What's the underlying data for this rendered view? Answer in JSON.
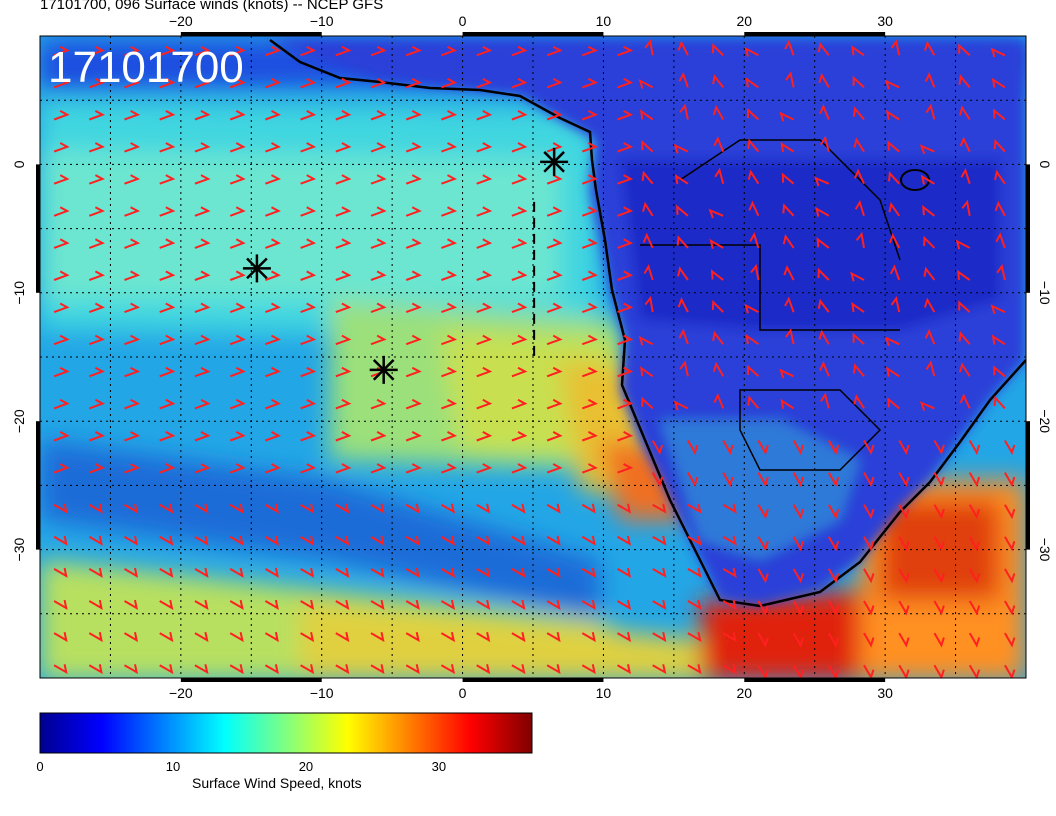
{
  "title": "17101700, 096 Surface winds (knots) -- NCEP GFS",
  "stamp": "17101700",
  "map": {
    "projection": "lat-lon",
    "lon_range": [
      -30,
      40
    ],
    "lat_range": [
      -40,
      10
    ],
    "grid": true,
    "lon_ticks": [
      {
        "value": -20,
        "label": "−20"
      },
      {
        "value": -10,
        "label": "−10"
      },
      {
        "value": 0,
        "label": "0"
      },
      {
        "value": 10,
        "label": "10"
      },
      {
        "value": 20,
        "label": "20"
      },
      {
        "value": 30,
        "label": "30"
      }
    ],
    "lat_ticks": [
      {
        "value": 0,
        "label": "0"
      },
      {
        "value": -10,
        "label": "−10"
      },
      {
        "value": -20,
        "label": "−20"
      },
      {
        "value": -30,
        "label": "−30"
      }
    ],
    "markers": [
      {
        "lon": 6.5,
        "lat": 0.2
      },
      {
        "lon": -14.6,
        "lat": -8.1
      },
      {
        "lon": -5.6,
        "lat": -16.0
      }
    ],
    "barb_color": "#ff2020",
    "land_outline_color": "#000000"
  },
  "colorbar": {
    "label": "Surface Wind Speed, knots",
    "min": 0,
    "max": 37,
    "ticks": [
      {
        "value": 0,
        "label": "0"
      },
      {
        "value": 10,
        "label": "10"
      },
      {
        "value": 20,
        "label": "20"
      },
      {
        "value": 30,
        "label": "30"
      }
    ],
    "colors": [
      "#00008f",
      "#0000ff",
      "#0080ff",
      "#00ffff",
      "#80ff80",
      "#ffff00",
      "#ff8000",
      "#ff0000",
      "#800000"
    ]
  }
}
